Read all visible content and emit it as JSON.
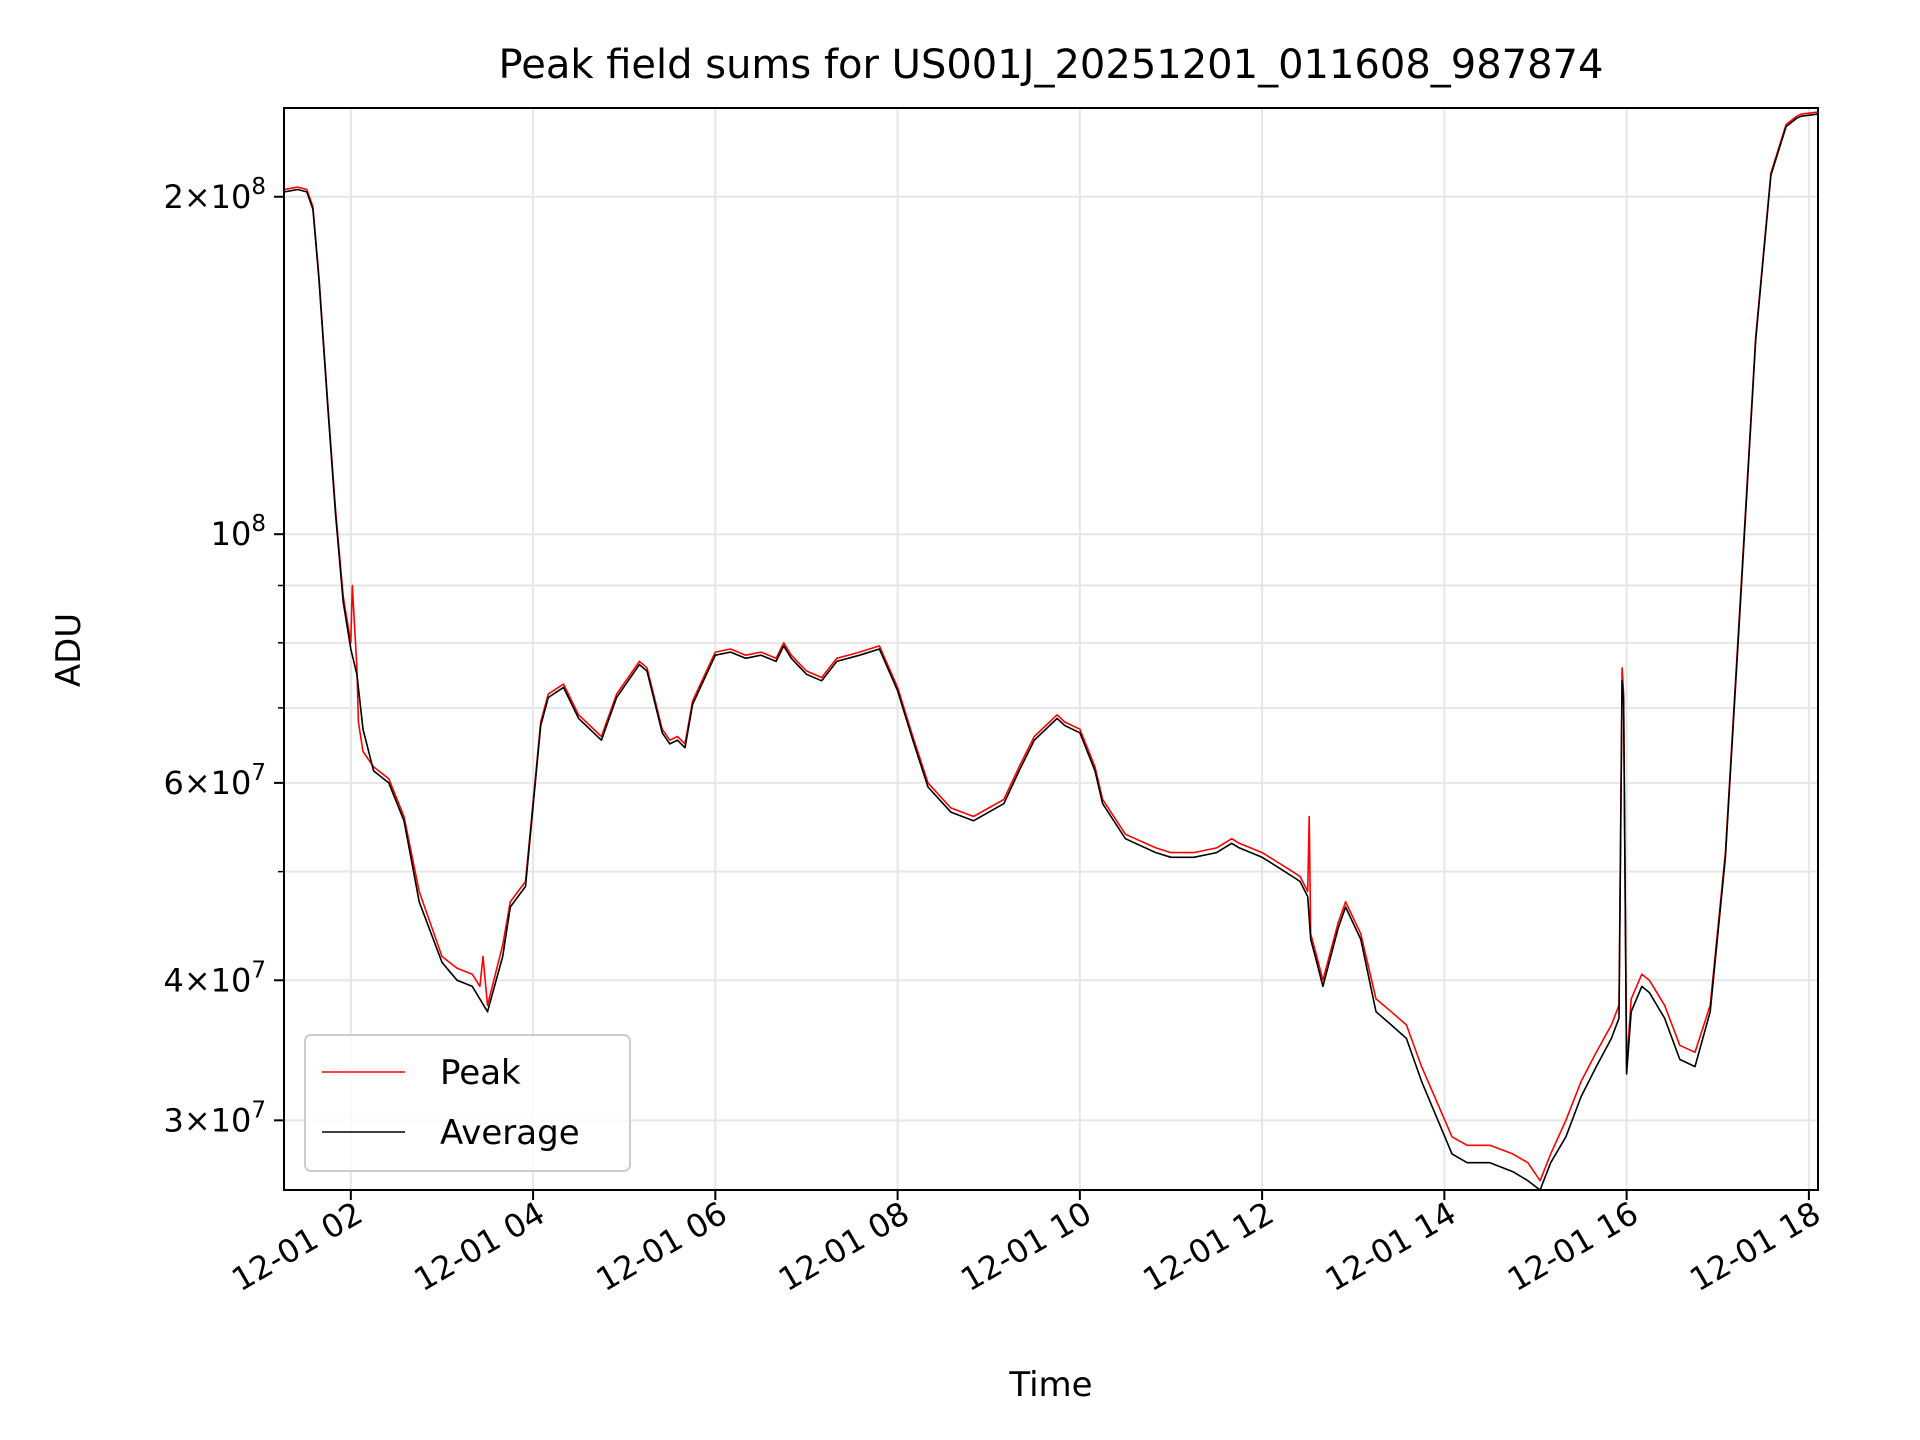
{
  "chart_data": {
    "type": "line",
    "title": "Peak field sums for US001J_20251201_011608_987874",
    "xlabel": "Time",
    "ylabel": "ADU",
    "yscale": "log",
    "xlim": [
      "12-01 01:16",
      "12-01 18:06"
    ],
    "ylim": [
      26000000,
      240000000
    ],
    "grid": true,
    "legend_position": "lower-left",
    "x_ticks": [
      {
        "value": "12-01 02:00",
        "label": "12-01 02"
      },
      {
        "value": "12-01 04:00",
        "label": "12-01 04"
      },
      {
        "value": "12-01 06:00",
        "label": "12-01 06"
      },
      {
        "value": "12-01 08:00",
        "label": "12-01 08"
      },
      {
        "value": "12-01 10:00",
        "label": "12-01 10"
      },
      {
        "value": "12-01 12:00",
        "label": "12-01 12"
      },
      {
        "value": "12-01 14:00",
        "label": "12-01 14"
      },
      {
        "value": "12-01 16:00",
        "label": "12-01 16"
      },
      {
        "value": "12-01 18:00",
        "label": "12-01 18"
      }
    ],
    "y_ticks": [
      {
        "value": 30000000,
        "mantissa": "3",
        "exp": "7"
      },
      {
        "value": 40000000,
        "mantissa": "4",
        "exp": "7"
      },
      {
        "value": 60000000,
        "mantissa": "6",
        "exp": "7"
      },
      {
        "value": 100000000,
        "mantissa": "",
        "exp": "8"
      },
      {
        "value": 200000000,
        "mantissa": "2",
        "exp": "8"
      }
    ],
    "y_minor_ticks": [
      50000000,
      70000000,
      80000000,
      90000000
    ],
    "series": [
      {
        "name": "Peak",
        "color": "#ff0000",
        "x": [
          "12-01 01:16",
          "12-01 01:25",
          "12-01 01:31",
          "12-01 01:35",
          "12-01 01:39",
          "12-01 01:45",
          "12-01 01:50",
          "12-01 01:55",
          "12-01 02:00",
          "12-01 02:01",
          "12-01 02:04",
          "12-01 02:05",
          "12-01 02:08",
          "12-01 02:15",
          "12-01 02:25",
          "12-01 02:35",
          "12-01 02:45",
          "12-01 03:00",
          "12-01 03:10",
          "12-01 03:20",
          "12-01 03:25",
          "12-01 03:27",
          "12-01 03:30",
          "12-01 03:40",
          "12-01 03:45",
          "12-01 03:55",
          "12-01 04:05",
          "12-01 04:10",
          "12-01 04:20",
          "12-01 04:30",
          "12-01 04:45",
          "12-01 04:55",
          "12-01 05:10",
          "12-01 05:15",
          "12-01 05:25",
          "12-01 05:30",
          "12-01 05:35",
          "12-01 05:40",
          "12-01 05:45",
          "12-01 06:00",
          "12-01 06:10",
          "12-01 06:20",
          "12-01 06:30",
          "12-01 06:40",
          "12-01 06:45",
          "12-01 06:50",
          "12-01 07:00",
          "12-01 07:10",
          "12-01 07:20",
          "12-01 07:35",
          "12-01 07:48",
          "12-01 08:00",
          "12-01 08:10",
          "12-01 08:20",
          "12-01 08:35",
          "12-01 08:50",
          "12-01 09:10",
          "12-01 09:20",
          "12-01 09:30",
          "12-01 09:45",
          "12-01 09:50",
          "12-01 10:00",
          "12-01 10:10",
          "12-01 10:15",
          "12-01 10:30",
          "12-01 10:50",
          "12-01 11:00",
          "12-01 11:15",
          "12-01 11:30",
          "12-01 11:40",
          "12-01 11:45",
          "12-01 12:00",
          "12-01 12:10",
          "12-01 12:20",
          "12-01 12:25",
          "12-01 12:30",
          "12-01 12:31",
          "12-01 12:32",
          "12-01 12:36",
          "12-01 12:40",
          "12-01 12:50",
          "12-01 12:55",
          "12-01 13:05",
          "12-01 13:15",
          "12-01 13:25",
          "12-01 13:35",
          "12-01 13:45",
          "12-01 14:05",
          "12-01 14:15",
          "12-01 14:30",
          "12-01 14:45",
          "12-01 14:55",
          "12-01 15:03",
          "12-01 15:10",
          "12-01 15:20",
          "12-01 15:30",
          "12-01 15:40",
          "12-01 15:50",
          "12-01 15:55",
          "12-01 15:57",
          "12-01 15:58",
          "12-01 16:00",
          "12-01 16:03",
          "12-01 16:10",
          "12-01 16:15",
          "12-01 16:25",
          "12-01 16:35",
          "12-01 16:45",
          "12-01 16:55",
          "12-01 17:05",
          "12-01 17:15",
          "12-01 17:25",
          "12-01 17:35",
          "12-01 17:45",
          "12-01 17:52",
          "12-01 17:55",
          "12-01 18:06"
        ],
        "values": [
          203000000,
          204000000,
          203000000,
          196000000,
          170000000,
          130000000,
          105000000,
          88000000,
          80000000,
          90000000,
          76000000,
          68000000,
          64000000,
          62000000,
          60500000,
          56000000,
          48000000,
          42000000,
          41000000,
          40500000,
          39500000,
          42000000,
          38000000,
          43000000,
          47000000,
          49000000,
          68000000,
          72000000,
          73500000,
          69000000,
          66000000,
          72000000,
          77000000,
          76000000,
          67000000,
          65500000,
          66000000,
          65000000,
          71000000,
          78500000,
          79000000,
          78000000,
          78500000,
          77500000,
          80000000,
          78000000,
          75500000,
          74500000,
          77500000,
          78500000,
          79500000,
          73000000,
          66000000,
          60000000,
          57000000,
          56000000,
          58000000,
          62000000,
          66000000,
          69000000,
          68000000,
          67000000,
          62000000,
          58000000,
          54000000,
          52500000,
          52000000,
          52000000,
          52500000,
          53500000,
          53000000,
          52000000,
          51000000,
          50000000,
          49500000,
          48000000,
          56000000,
          44000000,
          42000000,
          40000000,
          45000000,
          47000000,
          44000000,
          38500000,
          37500000,
          36500000,
          33500000,
          29000000,
          28500000,
          28500000,
          28000000,
          27500000,
          26500000,
          28000000,
          30000000,
          32500000,
          34500000,
          36500000,
          38000000,
          76000000,
          72000000,
          33500000,
          38500000,
          40500000,
          40000000,
          38000000,
          35000000,
          34500000,
          38000000,
          52000000,
          88000000,
          150000000,
          210000000,
          232000000,
          236000000,
          237000000,
          238000000
        ]
      },
      {
        "name": "Average",
        "color": "#000000",
        "x": [
          "12-01 01:16",
          "12-01 01:25",
          "12-01 01:31",
          "12-01 01:35",
          "12-01 01:39",
          "12-01 01:45",
          "12-01 01:50",
          "12-01 01:55",
          "12-01 02:00",
          "12-01 02:04",
          "12-01 02:08",
          "12-01 02:15",
          "12-01 02:25",
          "12-01 02:35",
          "12-01 02:45",
          "12-01 03:00",
          "12-01 03:10",
          "12-01 03:20",
          "12-01 03:30",
          "12-01 03:40",
          "12-01 03:45",
          "12-01 03:55",
          "12-01 04:05",
          "12-01 04:10",
          "12-01 04:20",
          "12-01 04:30",
          "12-01 04:45",
          "12-01 04:55",
          "12-01 05:10",
          "12-01 05:15",
          "12-01 05:25",
          "12-01 05:30",
          "12-01 05:35",
          "12-01 05:40",
          "12-01 05:45",
          "12-01 06:00",
          "12-01 06:10",
          "12-01 06:20",
          "12-01 06:30",
          "12-01 06:40",
          "12-01 06:45",
          "12-01 06:50",
          "12-01 07:00",
          "12-01 07:10",
          "12-01 07:20",
          "12-01 07:35",
          "12-01 07:48",
          "12-01 08:00",
          "12-01 08:10",
          "12-01 08:20",
          "12-01 08:35",
          "12-01 08:50",
          "12-01 09:10",
          "12-01 09:20",
          "12-01 09:30",
          "12-01 09:45",
          "12-01 09:50",
          "12-01 10:00",
          "12-01 10:10",
          "12-01 10:15",
          "12-01 10:30",
          "12-01 10:50",
          "12-01 11:00",
          "12-01 11:15",
          "12-01 11:30",
          "12-01 11:40",
          "12-01 11:45",
          "12-01 12:00",
          "12-01 12:10",
          "12-01 12:20",
          "12-01 12:25",
          "12-01 12:30",
          "12-01 12:32",
          "12-01 12:36",
          "12-01 12:40",
          "12-01 12:50",
          "12-01 12:55",
          "12-01 13:05",
          "12-01 13:15",
          "12-01 13:25",
          "12-01 13:35",
          "12-01 13:45",
          "12-01 14:05",
          "12-01 14:15",
          "12-01 14:30",
          "12-01 14:45",
          "12-01 14:55",
          "12-01 15:03",
          "12-01 15:10",
          "12-01 15:20",
          "12-01 15:30",
          "12-01 15:40",
          "12-01 15:50",
          "12-01 15:55",
          "12-01 15:57",
          "12-01 15:58",
          "12-01 16:00",
          "12-01 16:03",
          "12-01 16:10",
          "12-01 16:15",
          "12-01 16:25",
          "12-01 16:35",
          "12-01 16:45",
          "12-01 16:55",
          "12-01 17:05",
          "12-01 17:15",
          "12-01 17:25",
          "12-01 17:35",
          "12-01 17:45",
          "12-01 17:52",
          "12-01 17:55",
          "12-01 18:06"
        ],
        "values": [
          202000000,
          203000000,
          202000000,
          195000000,
          169000000,
          129000000,
          104000000,
          87000000,
          79000000,
          75000000,
          67000000,
          61500000,
          60000000,
          55500000,
          47000000,
          41500000,
          40000000,
          39500000,
          37500000,
          42000000,
          46500000,
          48500000,
          67500000,
          71500000,
          73000000,
          68500000,
          65500000,
          71500000,
          76500000,
          75500000,
          66500000,
          65000000,
          65500000,
          64500000,
          70500000,
          78000000,
          78500000,
          77500000,
          78000000,
          77000000,
          79500000,
          77500000,
          75000000,
          74000000,
          77000000,
          78000000,
          79000000,
          72500000,
          65500000,
          59500000,
          56500000,
          55500000,
          57500000,
          61500000,
          65500000,
          68500000,
          67500000,
          66500000,
          61500000,
          57500000,
          53500000,
          52000000,
          51500000,
          51500000,
          52000000,
          53000000,
          52500000,
          51500000,
          50500000,
          49500000,
          49000000,
          47500000,
          43500000,
          41500000,
          39500000,
          44500000,
          46500000,
          43500000,
          37500000,
          36500000,
          35500000,
          32500000,
          28000000,
          27500000,
          27500000,
          27000000,
          26500000,
          26000000,
          27500000,
          29000000,
          31500000,
          33500000,
          35500000,
          37000000,
          74000000,
          71000000,
          33000000,
          37500000,
          39500000,
          39000000,
          37000000,
          34000000,
          33500000,
          37500000,
          51500000,
          87000000,
          149000000,
          209000000,
          231000000,
          235000000,
          236000000,
          237000000
        ]
      }
    ]
  }
}
